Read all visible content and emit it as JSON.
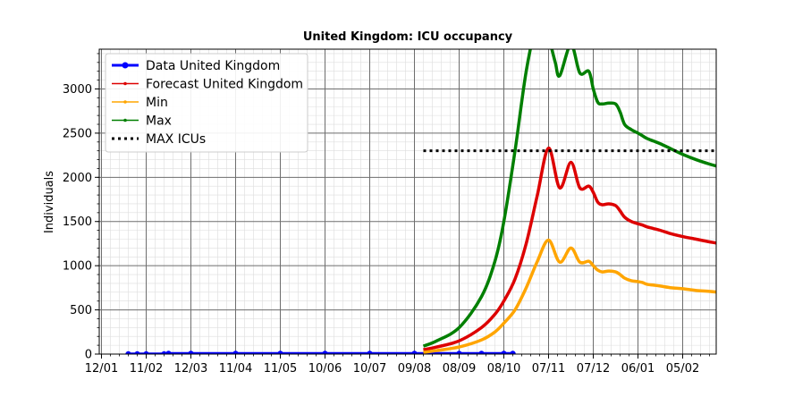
{
  "chart_data": {
    "type": "line",
    "title": "United Kingdom: ICU occupancy",
    "xlabel": "",
    "ylabel": "Individuals",
    "ylim": [
      0,
      3450
    ],
    "yticks": [
      0,
      500,
      1000,
      1500,
      2000,
      2500,
      3000
    ],
    "x_tick_labels": [
      "12/01",
      "11/02",
      "12/03",
      "11/04",
      "11/05",
      "10/06",
      "10/07",
      "09/08",
      "08/09",
      "08/10",
      "07/11",
      "07/12",
      "06/01",
      "05/02"
    ],
    "grid": true,
    "legend_position": "top-left",
    "colors": {
      "data": "#0000ff",
      "forecast": "#dd0000",
      "min": "#ffa500",
      "max": "#007f00",
      "max_icu": "#000000"
    },
    "series": [
      {
        "name": "Data United Kingdom",
        "style": "line-dot",
        "x": [
          0.6,
          0.8,
          1.0,
          1.4,
          1.5,
          2.0,
          3.0,
          4.0,
          5.0,
          6.0,
          7.0,
          8.0,
          8.5,
          9.0,
          9.2
        ],
        "y": [
          0,
          0,
          0,
          0,
          5,
          5,
          5,
          5,
          5,
          5,
          5,
          5,
          5,
          5,
          5
        ]
      },
      {
        "name": "Forecast United Kingdom",
        "style": "line",
        "x": [
          7.2,
          7.5,
          8.0,
          8.5,
          8.8,
          9.0,
          9.25,
          9.5,
          9.75,
          10.0,
          10.25,
          10.5,
          10.7,
          10.9,
          11.0,
          11.1,
          11.2,
          11.35,
          11.5,
          11.6,
          11.7,
          11.85,
          12.0,
          12.1,
          12.2,
          12.35,
          12.5,
          12.75,
          13.0,
          13.3,
          13.6,
          13.95,
          14.15
        ],
        "y": [
          50,
          80,
          150,
          300,
          450,
          600,
          850,
          1250,
          1800,
          2330,
          1880,
          2170,
          1880,
          1900,
          1830,
          1720,
          1690,
          1700,
          1680,
          1620,
          1550,
          1500,
          1475,
          1460,
          1440,
          1420,
          1400,
          1360,
          1330,
          1300,
          1270,
          1240,
          1240
        ]
      },
      {
        "name": "Min",
        "style": "line",
        "x": [
          7.2,
          7.5,
          8.0,
          8.5,
          8.8,
          9.0,
          9.25,
          9.5,
          9.75,
          10.0,
          10.25,
          10.5,
          10.7,
          10.9,
          11.0,
          11.1,
          11.2,
          11.35,
          11.5,
          11.6,
          11.7,
          11.85,
          12.0,
          12.1,
          12.2,
          12.35,
          12.5,
          12.75,
          13.0,
          13.3,
          13.6,
          13.95,
          14.15
        ],
        "y": [
          20,
          40,
          80,
          160,
          250,
          350,
          500,
          750,
          1050,
          1290,
          1040,
          1200,
          1040,
          1050,
          1000,
          950,
          930,
          940,
          930,
          900,
          860,
          830,
          820,
          810,
          790,
          780,
          770,
          750,
          740,
          720,
          710,
          690,
          680
        ]
      },
      {
        "name": "Max",
        "style": "line",
        "x": [
          7.2,
          7.5,
          8.0,
          8.5,
          8.8,
          9.0,
          9.25,
          9.5,
          9.75,
          9.85,
          10.0,
          10.15,
          10.25,
          10.5,
          10.7,
          10.9,
          11.0,
          11.1,
          11.2,
          11.35,
          11.5,
          11.6,
          11.7,
          11.85,
          12.0,
          12.1,
          12.2,
          12.35,
          12.5,
          12.75,
          13.0,
          13.3,
          13.6,
          13.95,
          14.15
        ],
        "y": [
          90,
          150,
          300,
          650,
          1050,
          1500,
          2300,
          3200,
          3800,
          3900,
          3600,
          3300,
          3150,
          3500,
          3180,
          3200,
          3000,
          2850,
          2830,
          2840,
          2830,
          2740,
          2600,
          2540,
          2500,
          2470,
          2440,
          2410,
          2380,
          2320,
          2260,
          2200,
          2150,
          2100,
          2070
        ]
      },
      {
        "name": "MAX ICUs",
        "style": "dotted",
        "x": [
          7.2,
          14.15
        ],
        "y": [
          2300,
          2300
        ]
      }
    ]
  }
}
